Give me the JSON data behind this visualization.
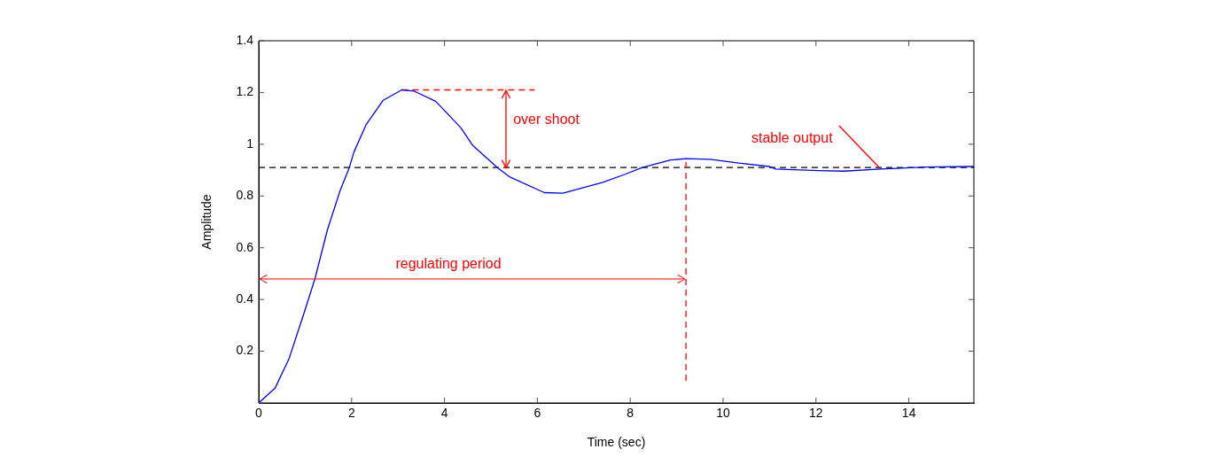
{
  "chart_data": {
    "type": "line",
    "xlabel": "Time (sec)",
    "ylabel": "Amplitude",
    "x": [
      0,
      0.35,
      0.65,
      0.98,
      1.21,
      1.48,
      1.75,
      1.95,
      2.05,
      2.31,
      2.68,
      3.08,
      3.35,
      3.81,
      4.35,
      4.61,
      5.15,
      5.41,
      6.15,
      6.55,
      7.41,
      7.89,
      8.26,
      8.87,
      9.2,
      9.72,
      10.34,
      11.0,
      11.13,
      12.05,
      12.6,
      13.39,
      14.37,
      15.4
    ],
    "series": [
      {
        "color": "#0000ff",
        "values": [
          0,
          0.057,
          0.17,
          0.35,
          0.48,
          0.67,
          0.82,
          0.91,
          0.97,
          1.075,
          1.17,
          1.21,
          1.205,
          1.166,
          1.064,
          0.995,
          0.908,
          0.873,
          0.813,
          0.811,
          0.853,
          0.884,
          0.91,
          0.939,
          0.944,
          0.942,
          0.927,
          0.914,
          0.904,
          0.898,
          0.896,
          0.904,
          0.912,
          0.914
        ]
      }
    ],
    "xlim": [
      0,
      15.4
    ],
    "xticks": [
      0,
      2,
      4,
      6,
      8,
      10,
      12,
      14
    ],
    "ylim": [
      0,
      1.4
    ],
    "yticks": [
      {
        "value": 0,
        "label": null
      },
      0.2,
      0.4,
      0.6,
      0.8,
      1,
      1.2,
      1.4
    ],
    "grid": false,
    "legend": false,
    "marker": "none",
    "line_style": "solid",
    "ref_lines": [
      {
        "axis": "y",
        "value": 0.91,
        "color": "#000000",
        "line_style": "dashed"
      },
      {
        "axis": "x",
        "value": 9.2,
        "color": "#ff0000",
        "line_style": "dashed"
      },
      {
        "axis": "y",
        "value": 1.21,
        "color": "#ff0000",
        "line_style": "dashed"
      }
    ],
    "annotations": [
      "over shoot",
      "regulating period",
      {
        "text": "stable output",
        "x": 13.35,
        "y": 0.91
      }
    ]
  }
}
